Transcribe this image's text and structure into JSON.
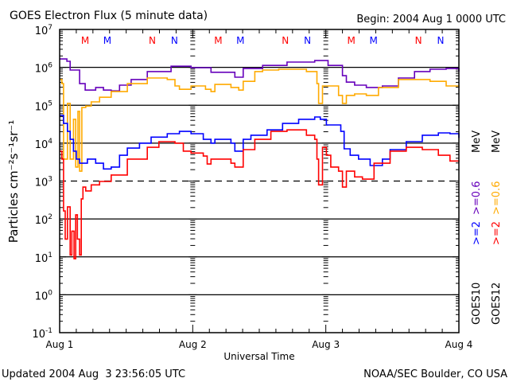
{
  "chart_data": {
    "type": "line",
    "title": "GOES Electron Flux (5 minute data)",
    "begin_label": "Begin: 2004 Aug 1 0000 UTC",
    "xlabel": "Universal Time",
    "ylabel": "Particles cm⁻²s⁻¹sr⁻¹",
    "y_scale": "log",
    "ylim_log10": [
      -1,
      7
    ],
    "xlim_hours": [
      0,
      72
    ],
    "xticks": [
      {
        "hour": 0,
        "label": "Aug 1"
      },
      {
        "hour": 24,
        "label": "Aug 2"
      },
      {
        "hour": 48,
        "label": "Aug 3"
      },
      {
        "hour": 72,
        "label": "Aug 4"
      }
    ],
    "yticks": [
      {
        "exp": "7",
        "base": "10"
      },
      {
        "exp": "6",
        "base": "10"
      },
      {
        "exp": "5",
        "base": "10"
      },
      {
        "exp": "4",
        "base": "10"
      },
      {
        "exp": "3",
        "base": "10"
      },
      {
        "exp": "2",
        "base": "10"
      },
      {
        "exp": "1",
        "base": "10"
      },
      {
        "exp": "0",
        "base": "10"
      },
      {
        "exp": "-1",
        "base": "10"
      }
    ],
    "threshold_log10": 3,
    "markers": [
      {
        "hour": 4.6,
        "label": "M",
        "color": "#ff0000"
      },
      {
        "hour": 8.6,
        "label": "M",
        "color": "#0000ff"
      },
      {
        "hour": 16.7,
        "label": "N",
        "color": "#ff0000"
      },
      {
        "hour": 20.7,
        "label": "N",
        "color": "#0000ff"
      },
      {
        "hour": 28.6,
        "label": "M",
        "color": "#ff0000"
      },
      {
        "hour": 32.6,
        "label": "M",
        "color": "#0000ff"
      },
      {
        "hour": 40.7,
        "label": "N",
        "color": "#ff0000"
      },
      {
        "hour": 44.7,
        "label": "N",
        "color": "#0000ff"
      },
      {
        "hour": 52.6,
        "label": "M",
        "color": "#ff0000"
      },
      {
        "hour": 56.6,
        "label": "M",
        "color": "#0000ff"
      },
      {
        "hour": 64.7,
        "label": "N",
        "color": "#ff0000"
      },
      {
        "hour": 68.7,
        "label": "N",
        "color": "#0000ff"
      }
    ],
    "legend": {
      "goes10": "GOES10",
      "goes12": "GOES12",
      "g10_low": ">=0.6",
      "g10_high": ">=2",
      "g12_low": ">=0.6",
      "g12_high": ">=2",
      "unit": "MeV"
    },
    "series": [
      {
        "name": "GOES10 >=0.6 MeV",
        "color": "#6600bb",
        "points": [
          [
            0,
            6.22
          ],
          [
            1.3,
            6.16
          ],
          [
            1.9,
            5.93
          ],
          [
            3.6,
            5.57
          ],
          [
            4.6,
            5.4
          ],
          [
            6.5,
            5.47
          ],
          [
            7.9,
            5.4
          ],
          [
            9.3,
            5.38
          ],
          [
            10.8,
            5.53
          ],
          [
            12.9,
            5.68
          ],
          [
            15.8,
            5.89
          ],
          [
            20.1,
            6.03
          ],
          [
            23.7,
            5.99
          ],
          [
            27.3,
            5.87
          ],
          [
            31.6,
            5.74
          ],
          [
            33.1,
            5.97
          ],
          [
            36.6,
            6.05
          ],
          [
            41,
            6.14
          ],
          [
            46,
            6.18
          ],
          [
            48.4,
            6.05
          ],
          [
            51,
            5.78
          ],
          [
            51.7,
            5.61
          ],
          [
            53.2,
            5.53
          ],
          [
            55.3,
            5.47
          ],
          [
            58.2,
            5.51
          ],
          [
            61.1,
            5.72
          ],
          [
            64,
            5.89
          ],
          [
            66.8,
            5.95
          ],
          [
            69.7,
            5.97
          ],
          [
            72,
            5.89
          ]
        ]
      },
      {
        "name": "GOES12 >=0.6 MeV",
        "color": "#ffaa00",
        "points": [
          [
            0,
            5.68
          ],
          [
            0.4,
            5.57
          ],
          [
            0.7,
            3.58
          ],
          [
            1.4,
            5.05
          ],
          [
            1.9,
            3.58
          ],
          [
            2.5,
            4.63
          ],
          [
            2.9,
            3.37
          ],
          [
            3.3,
            4.84
          ],
          [
            3.6,
            3.26
          ],
          [
            4.0,
            4.94
          ],
          [
            4.7,
            4.98
          ],
          [
            5.7,
            5.09
          ],
          [
            7.2,
            5.21
          ],
          [
            9.3,
            5.36
          ],
          [
            12.2,
            5.57
          ],
          [
            15.8,
            5.72
          ],
          [
            19.4,
            5.68
          ],
          [
            20.8,
            5.51
          ],
          [
            21.6,
            5.42
          ],
          [
            23.7,
            5.51
          ],
          [
            26.3,
            5.42
          ],
          [
            27.3,
            5.36
          ],
          [
            28.0,
            5.55
          ],
          [
            30.9,
            5.47
          ],
          [
            32.3,
            5.4
          ],
          [
            33.1,
            5.63
          ],
          [
            35.2,
            5.89
          ],
          [
            36.6,
            5.93
          ],
          [
            39.5,
            5.95
          ],
          [
            44.5,
            5.89
          ],
          [
            46.4,
            5.57
          ],
          [
            46.7,
            5.05
          ],
          [
            47.4,
            5.51
          ],
          [
            48.9,
            5.51
          ],
          [
            50.3,
            5.26
          ],
          [
            51,
            5.05
          ],
          [
            51.7,
            5.26
          ],
          [
            53.2,
            5.3
          ],
          [
            55.3,
            5.26
          ],
          [
            57.5,
            5.47
          ],
          [
            61.1,
            5.68
          ],
          [
            64,
            5.68
          ],
          [
            66.8,
            5.63
          ],
          [
            69.7,
            5.51
          ],
          [
            72,
            5.47
          ]
        ]
      },
      {
        "name": "GOES10 >=2 MeV",
        "color": "#0000ff",
        "points": [
          [
            0,
            4.73
          ],
          [
            0.7,
            4.52
          ],
          [
            1.4,
            4.31
          ],
          [
            1.9,
            4.1
          ],
          [
            2.5,
            3.79
          ],
          [
            3.0,
            3.58
          ],
          [
            3.6,
            3.47
          ],
          [
            5.0,
            3.58
          ],
          [
            6.5,
            3.47
          ],
          [
            7.9,
            3.32
          ],
          [
            9.3,
            3.37
          ],
          [
            10.8,
            3.68
          ],
          [
            12.2,
            3.87
          ],
          [
            14.4,
            4.0
          ],
          [
            16.5,
            4.16
          ],
          [
            19.4,
            4.25
          ],
          [
            21.6,
            4.31
          ],
          [
            23.7,
            4.25
          ],
          [
            25.9,
            4.1
          ],
          [
            27.3,
            4.0
          ],
          [
            28.0,
            4.1
          ],
          [
            30.9,
            4.0
          ],
          [
            31.6,
            3.79
          ],
          [
            33.1,
            4.1
          ],
          [
            34.5,
            4.21
          ],
          [
            37.4,
            4.35
          ],
          [
            40.2,
            4.52
          ],
          [
            43.1,
            4.63
          ],
          [
            46,
            4.69
          ],
          [
            47,
            4.63
          ],
          [
            48.1,
            4.48
          ],
          [
            50.7,
            4.31
          ],
          [
            51.3,
            3.85
          ],
          [
            52.4,
            3.68
          ],
          [
            53.9,
            3.58
          ],
          [
            56,
            3.41
          ],
          [
            58.2,
            3.58
          ],
          [
            59.6,
            3.83
          ],
          [
            62.5,
            4.04
          ],
          [
            65.4,
            4.21
          ],
          [
            68.3,
            4.27
          ],
          [
            70.4,
            4.25
          ],
          [
            72,
            4.14
          ]
        ]
      },
      {
        "name": "GOES12 >=2 MeV",
        "color": "#ff0000",
        "points": [
          [
            0,
            3.79
          ],
          [
            0.4,
            3.58
          ],
          [
            0.7,
            2.21
          ],
          [
            1.0,
            1.47
          ],
          [
            1.4,
            2.32
          ],
          [
            1.9,
            1.05
          ],
          [
            2.2,
            1.68
          ],
          [
            2.6,
            0.95
          ],
          [
            2.9,
            2.11
          ],
          [
            3.2,
            1.47
          ],
          [
            3.6,
            1.05
          ],
          [
            3.9,
            2.53
          ],
          [
            4.2,
            2.84
          ],
          [
            4.7,
            2.74
          ],
          [
            5.7,
            2.9
          ],
          [
            7.2,
            2.99
          ],
          [
            9.3,
            3.16
          ],
          [
            12.2,
            3.58
          ],
          [
            15.8,
            3.89
          ],
          [
            17.9,
            4.04
          ],
          [
            20.8,
            4.0
          ],
          [
            22.3,
            3.79
          ],
          [
            23.7,
            3.74
          ],
          [
            25.9,
            3.66
          ],
          [
            26.6,
            3.45
          ],
          [
            27.3,
            3.58
          ],
          [
            30.9,
            3.47
          ],
          [
            31.6,
            3.37
          ],
          [
            33.1,
            3.83
          ],
          [
            35.2,
            4.1
          ],
          [
            38.1,
            4.31
          ],
          [
            41,
            4.35
          ],
          [
            44.5,
            4.21
          ],
          [
            46,
            4.1
          ],
          [
            46.4,
            3.58
          ],
          [
            46.7,
            2.9
          ],
          [
            47.4,
            3.89
          ],
          [
            48.1,
            3.68
          ],
          [
            48.9,
            3.37
          ],
          [
            50.3,
            3.26
          ],
          [
            51,
            2.84
          ],
          [
            51.7,
            3.26
          ],
          [
            53.2,
            3.11
          ],
          [
            54.6,
            3.05
          ],
          [
            56.7,
            3.47
          ],
          [
            59.6,
            3.79
          ],
          [
            62.5,
            3.89
          ],
          [
            65.4,
            3.83
          ],
          [
            68.3,
            3.68
          ],
          [
            70.4,
            3.53
          ],
          [
            72,
            3.51
          ]
        ]
      }
    ]
  },
  "footer": {
    "updated": "Updated 2004 Aug  3 23:56:05 UTC",
    "credit": "NOAA/SEC Boulder, CO USA"
  }
}
